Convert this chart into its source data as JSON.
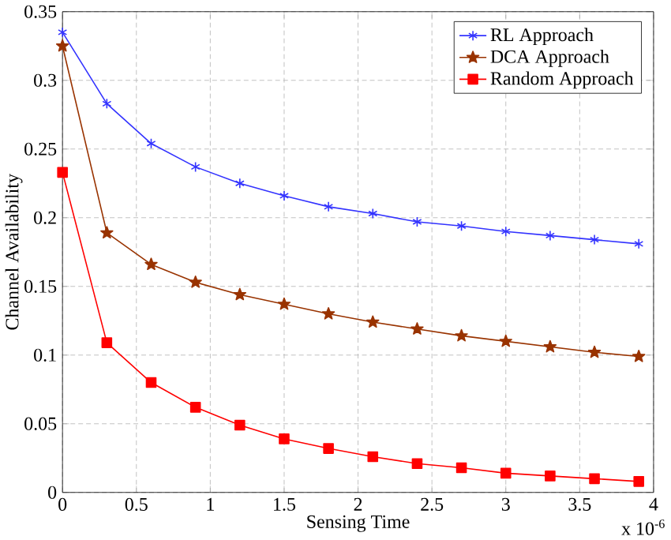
{
  "chart_data": {
    "type": "line",
    "xlabel": "Sensing Time",
    "ylabel": "Channel Availability",
    "annotations": [
      "x 10$^{-6}$"
    ],
    "x": [
      0,
      0.3,
      0.6,
      0.9,
      1.2,
      1.5,
      1.8,
      2.1,
      2.4,
      2.7,
      3.0,
      3.3,
      3.6,
      3.9
    ],
    "series": [
      {
        "name": "RL Approach",
        "color": "#3333ff",
        "marker": "cross",
        "values": [
          0.335,
          0.283,
          0.254,
          0.237,
          0.225,
          0.216,
          0.208,
          0.203,
          0.197,
          0.194,
          0.19,
          0.187,
          0.184,
          0.181
        ]
      },
      {
        "name": "DCA Approach",
        "color": "#993300",
        "marker": "star",
        "values": [
          0.325,
          0.189,
          0.166,
          0.153,
          0.144,
          0.137,
          0.13,
          0.124,
          0.119,
          0.114,
          0.11,
          0.106,
          0.102,
          0.099
        ]
      },
      {
        "name": "Random Approach",
        "color": "#ff0000",
        "marker": "square",
        "values": [
          0.233,
          0.109,
          0.08,
          0.062,
          0.049,
          0.039,
          0.032,
          0.026,
          0.021,
          0.018,
          0.014,
          0.012,
          0.01,
          0.008
        ]
      }
    ],
    "xlim": [
      0,
      4
    ],
    "ylim": [
      0,
      0.35
    ],
    "xticks": [
      0,
      0.5,
      1,
      1.5,
      2,
      2.5,
      3,
      3.5,
      4
    ],
    "yticks": [
      0,
      0.05,
      0.1,
      0.15,
      0.2,
      0.25,
      0.3,
      0.35
    ],
    "grid": true,
    "legend": "top right",
    "line_style": "solid"
  }
}
